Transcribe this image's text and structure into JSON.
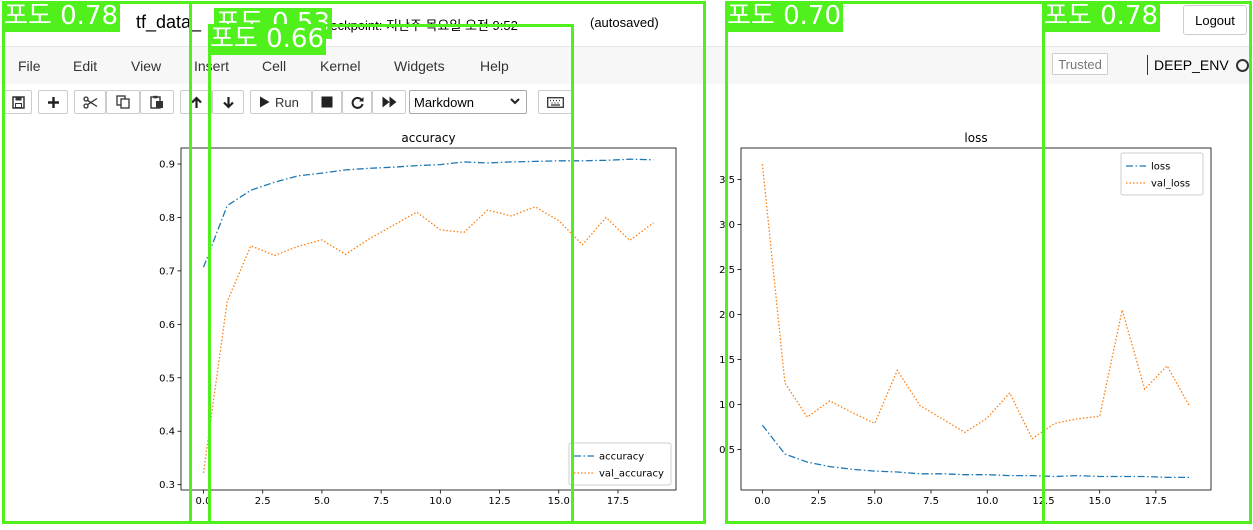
{
  "header": {
    "notebook_title": "tf_data_",
    "checkpoint_text": "st Checkpoint: 지난주 목요일 오전 9:52",
    "autosaved": "(autosaved)",
    "logout_label": "Logout"
  },
  "menubar": {
    "items": [
      "File",
      "Edit",
      "View",
      "Insert",
      "Cell",
      "Kernel",
      "Widgets",
      "Help"
    ],
    "trusted": "Trusted",
    "kernel_name": "DEEP_ENV"
  },
  "toolbar": {
    "run_label": "Run",
    "cell_type": "Markdown",
    "icons": [
      "save-icon",
      "plus-icon",
      "scissors-icon",
      "copy-icon",
      "paste-icon",
      "arrow-up-icon",
      "arrow-down-icon",
      "play-icon",
      "stop-icon",
      "restart-icon",
      "fast-forward-icon",
      "keyboard-icon"
    ]
  },
  "detections": [
    {
      "label": "포도 0.78"
    },
    {
      "label": "포도 0.53"
    },
    {
      "label": "포도 0.66"
    },
    {
      "label": "포도 0.70"
    },
    {
      "label": "포도 0.78"
    }
  ],
  "chart_data": [
    {
      "type": "line",
      "title": "accuracy",
      "x": [
        0,
        1,
        2,
        3,
        4,
        5,
        6,
        7,
        8,
        9,
        10,
        11,
        12,
        13,
        14,
        15,
        16,
        17,
        18,
        19
      ],
      "xticks": [
        "0.0",
        "2.5",
        "5.0",
        "7.5",
        "10.0",
        "12.5",
        "15.0",
        "17.5"
      ],
      "xlim": [
        -0.95,
        19.95
      ],
      "yticks": [
        "0.3",
        "0.4",
        "0.5",
        "0.6",
        "0.7",
        "0.8",
        "0.9"
      ],
      "ylim": [
        0.29,
        0.93
      ],
      "legend": "bottom-right",
      "series": [
        {
          "name": "accuracy",
          "color": "#1f77b4",
          "dash": "dashdot",
          "values": [
            0.707,
            0.822,
            0.851,
            0.866,
            0.878,
            0.883,
            0.889,
            0.892,
            0.894,
            0.897,
            0.899,
            0.904,
            0.902,
            0.904,
            0.905,
            0.906,
            0.906,
            0.907,
            0.909,
            0.908
          ]
        },
        {
          "name": "val_accuracy",
          "color": "#ff7f0e",
          "dash": "dotted",
          "values": [
            0.322,
            0.643,
            0.747,
            0.729,
            0.746,
            0.758,
            0.731,
            0.76,
            0.785,
            0.81,
            0.777,
            0.772,
            0.814,
            0.803,
            0.82,
            0.794,
            0.749,
            0.8,
            0.757,
            0.79
          ]
        }
      ]
    },
    {
      "type": "line",
      "title": "loss",
      "x": [
        0,
        1,
        2,
        3,
        4,
        5,
        6,
        7,
        8,
        9,
        10,
        11,
        12,
        13,
        14,
        15,
        16,
        17,
        18,
        19
      ],
      "xticks": [
        "0.0",
        "2.5",
        "5.0",
        "7.5",
        "10.0",
        "12.5",
        "15.0",
        "17.5"
      ],
      "xlim": [
        -0.95,
        19.95
      ],
      "yticks": [
        "0.5",
        "1.0",
        "1.5",
        "2.0",
        "2.5",
        "3.0",
        "3.5"
      ],
      "ylim": [
        0.05,
        3.85
      ],
      "legend": "top-right",
      "series": [
        {
          "name": "loss",
          "color": "#1f77b4",
          "dash": "dashdot",
          "values": [
            0.77,
            0.45,
            0.36,
            0.31,
            0.28,
            0.26,
            0.25,
            0.23,
            0.23,
            0.22,
            0.22,
            0.21,
            0.21,
            0.2,
            0.21,
            0.2,
            0.2,
            0.2,
            0.19,
            0.19
          ]
        },
        {
          "name": "val_loss",
          "color": "#ff7f0e",
          "dash": "dotted",
          "values": [
            3.67,
            1.24,
            0.86,
            1.04,
            0.91,
            0.79,
            1.38,
            0.99,
            0.84,
            0.69,
            0.85,
            1.13,
            0.62,
            0.79,
            0.84,
            0.87,
            2.05,
            1.17,
            1.43,
            0.98
          ]
        }
      ]
    }
  ]
}
